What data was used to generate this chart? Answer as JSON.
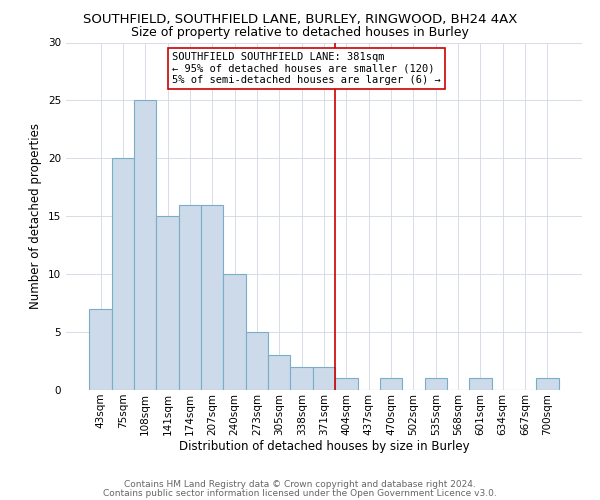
{
  "title": "SOUTHFIELD, SOUTHFIELD LANE, BURLEY, RINGWOOD, BH24 4AX",
  "subtitle": "Size of property relative to detached houses in Burley",
  "xlabel": "Distribution of detached houses by size in Burley",
  "ylabel": "Number of detached properties",
  "bin_labels": [
    "43sqm",
    "75sqm",
    "108sqm",
    "141sqm",
    "174sqm",
    "207sqm",
    "240sqm",
    "273sqm",
    "305sqm",
    "338sqm",
    "371sqm",
    "404sqm",
    "437sqm",
    "470sqm",
    "502sqm",
    "535sqm",
    "568sqm",
    "601sqm",
    "634sqm",
    "667sqm",
    "700sqm"
  ],
  "bar_heights": [
    7,
    20,
    25,
    15,
    16,
    16,
    10,
    5,
    3,
    2,
    2,
    1,
    0,
    1,
    0,
    1,
    0,
    1,
    0,
    0,
    1
  ],
  "bar_color": "#ccdaea",
  "bar_edge_color": "#7aaec8",
  "vline_x_index": 10.5,
  "vline_color": "#cc0000",
  "annotation_text": "SOUTHFIELD SOUTHFIELD LANE: 381sqm\n← 95% of detached houses are smaller (120)\n5% of semi-detached houses are larger (6) →",
  "annotation_box_color": "#ffffff",
  "annotation_box_edge_color": "#cc0000",
  "ylim": [
    0,
    30
  ],
  "yticks": [
    0,
    5,
    10,
    15,
    20,
    25,
    30
  ],
  "footnote1": "Contains HM Land Registry data © Crown copyright and database right 2024.",
  "footnote2": "Contains public sector information licensed under the Open Government Licence v3.0.",
  "title_fontsize": 9.5,
  "subtitle_fontsize": 9,
  "axis_label_fontsize": 8.5,
  "tick_fontsize": 7.5,
  "annotation_fontsize": 7.5,
  "footnote_fontsize": 6.5,
  "bg_color": "#ffffff",
  "grid_color": "#d0d8e4"
}
